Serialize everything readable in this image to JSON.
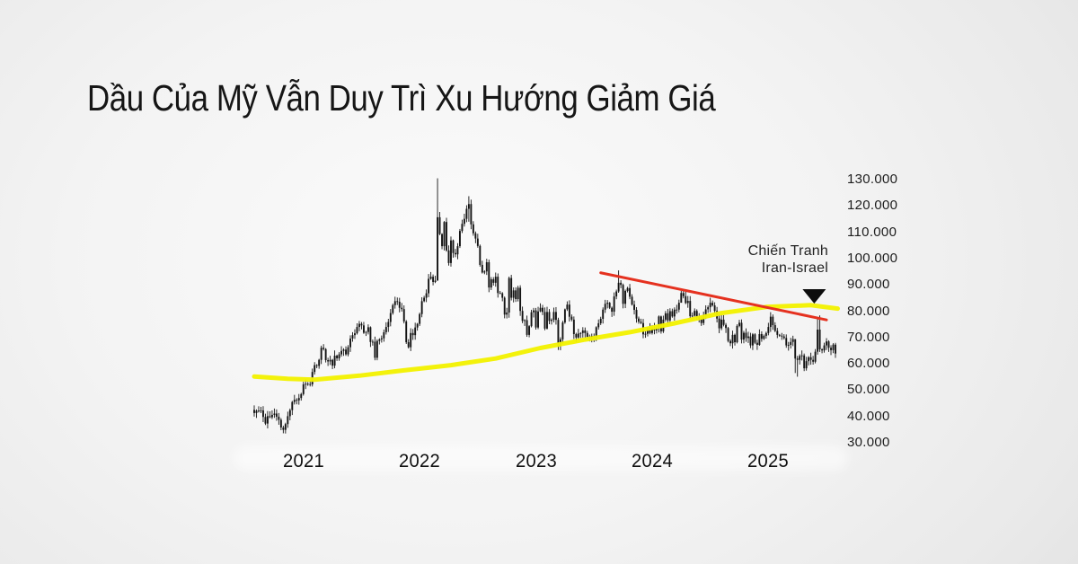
{
  "header": {
    "title": "Dầu Của Mỹ Vẫn Duy Trì Xu Hướng Giảm Giá"
  },
  "chart_data": {
    "type": "candlestick",
    "title": "Dầu Của Mỹ Vẫn Duy Trì Xu Hướng Giảm Giá",
    "candle_color": "#131313",
    "x_axis": {
      "ticks": [
        {
          "label": "2021",
          "week": 22
        },
        {
          "label": "2022",
          "week": 74
        },
        {
          "label": "2023",
          "week": 126
        },
        {
          "label": "2024",
          "week": 178
        },
        {
          "label": "2025",
          "week": 230
        }
      ]
    },
    "y_axis": {
      "visible_range": [
        28,
        133
      ],
      "ticks": [
        {
          "value": 130,
          "label": "130.000"
        },
        {
          "value": 120,
          "label": "120.000"
        },
        {
          "value": 110,
          "label": "110.000"
        },
        {
          "value": 100,
          "label": "100.000"
        },
        {
          "value": 90,
          "label": "90.000"
        },
        {
          "value": 80,
          "label": "80.000"
        },
        {
          "value": 70,
          "label": "70.000"
        },
        {
          "value": 60,
          "label": "60.000"
        },
        {
          "value": 50,
          "label": "50.000"
        },
        {
          "value": 40,
          "label": "40.000"
        },
        {
          "value": 30,
          "label": "30.000"
        }
      ]
    },
    "series": {
      "name": "WTI weekly candles",
      "first_open": 42.5,
      "weekly_closes": [
        41.3,
        42.2,
        42.0,
        42.3,
        39.8,
        37.3,
        40.1,
        39.7,
        40.6,
        41.1,
        39.9,
        38.7,
        35.8,
        34.9,
        37.1,
        40.1,
        42.4,
        45.5,
        46.3,
        46.1,
        47.0,
        48.5,
        52.2,
        52.4,
        52.3,
        52.2,
        56.9,
        59.5,
        59.2,
        61.5,
        66.1,
        65.6,
        61.4,
        60.9,
        61.5,
        59.3,
        63.1,
        62.1,
        63.6,
        64.9,
        65.4,
        63.6,
        66.3,
        69.6,
        70.9,
        71.6,
        74.0,
        75.2,
        74.6,
        71.8,
        72.1,
        73.9,
        68.3,
        68.4,
        62.3,
        68.7,
        69.3,
        69.7,
        72.0,
        74.0,
        75.9,
        79.3,
        82.3,
        83.8,
        83.6,
        81.3,
        80.8,
        76.1,
        68.2,
        66.3,
        71.7,
        70.9,
        73.8,
        75.2,
        78.9,
        83.8,
        85.1,
        86.8,
        92.3,
        93.1,
        91.1,
        91.6,
        115.7,
        109.3,
        104.7,
        113.9,
        103.1,
        98.3,
        106.9,
        102.1,
        101.6,
        104.7,
        110.5,
        113.2,
        115.1,
        118.9,
        120.7,
        113.0,
        109.6,
        107.6,
        104.8,
        97.6,
        94.7,
        95.1,
        98.6,
        89.0,
        92.1,
        90.8,
        93.1,
        86.9,
        86.8,
        85.1,
        78.7,
        79.5,
        92.6,
        85.1,
        87.9,
        84.6,
        88.9,
        80.1,
        76.3,
        76.6,
        71.0,
        74.3,
        79.6,
        80.3,
        73.8,
        79.9,
        81.3,
        79.7,
        73.4,
        79.7,
        76.3,
        76.7,
        79.7,
        76.7,
        66.7,
        69.3,
        75.7,
        80.7,
        82.5,
        77.9,
        76.8,
        71.3,
        70.0,
        71.5,
        71.7,
        72.7,
        71.7,
        70.2,
        69.2,
        70.6,
        69.9,
        73.9,
        75.4,
        77.1,
        80.6,
        82.8,
        83.2,
        81.3,
        79.8,
        85.6,
        87.5,
        90.8,
        90.0,
        82.8,
        87.7,
        88.8,
        85.5,
        82.5,
        80.5,
        77.2,
        76.0,
        75.5,
        71.2,
        71.4,
        73.6,
        71.7,
        73.8,
        72.7,
        73.3,
        78.0,
        72.3,
        76.8,
        79.2,
        76.5,
        80.0,
        78.0,
        80.6,
        80.6,
        83.2,
        86.9,
        85.7,
        83.1,
        83.9,
        78.1,
        78.3,
        80.1,
        77.7,
        77.0,
        75.5,
        78.5,
        80.7,
        81.5,
        83.2,
        82.2,
        80.1,
        77.2,
        73.5,
        76.8,
        74.8,
        73.6,
        68.7,
        67.8,
        71.0,
        68.2,
        74.4,
        75.6,
        69.2,
        71.8,
        69.8,
        70.4,
        67.0,
        71.2,
        68.0,
        67.2,
        71.3,
        69.5,
        70.6,
        71.7,
        74.0,
        77.9,
        74.7,
        72.5,
        71.0,
        70.7,
        70.4,
        69.8,
        67.0,
        67.2,
        68.3,
        69.4,
        62.0,
        61.5,
        63.0,
        63.2,
        58.3,
        61.0,
        62.5,
        61.5,
        60.8,
        64.6,
        73.0,
        65.5,
        65.1,
        67.0,
        68.5,
        66.1,
        65.2,
        67.3,
        63.9
      ],
      "wick_overrides": {
        "13": [
          36.5,
          33.6
        ],
        "82": [
          130.5,
          103.5
        ],
        "96": [
          123.7,
          114.0
        ],
        "163": [
          95.5,
          87.0
        ],
        "191": [
          87.7,
          83.5
        ],
        "242": [
          63.5,
          56.5
        ],
        "243": [
          63.0,
          55.1
        ],
        "252": [
          77.6,
          63.5
        ],
        "253": [
          78.4,
          64.5
        ]
      }
    },
    "moving_average": {
      "name": "yellow moving average",
      "color": "#f3f203",
      "points": [
        [
          0,
          55.2
        ],
        [
          15,
          54.3
        ],
        [
          27,
          54.0
        ],
        [
          47,
          55.5
        ],
        [
          67,
          57.5
        ],
        [
          88,
          59.5
        ],
        [
          108,
          62.0
        ],
        [
          128,
          66.0
        ],
        [
          148,
          69.2
        ],
        [
          168,
          72.0
        ],
        [
          188,
          75.4
        ],
        [
          209,
          79.3
        ],
        [
          229,
          81.6
        ],
        [
          249,
          82.3
        ],
        [
          261,
          81.0
        ]
      ]
    },
    "trendline": {
      "name": "red downtrend line",
      "color": "#e5311f",
      "from": {
        "week": 155,
        "price": 94.6
      },
      "to": {
        "week": 256,
        "price": 76.7
      }
    },
    "annotation": {
      "lines": [
        "Chiến Tranh",
        "Iran-Israel"
      ],
      "marker": "down-triangle",
      "marker_color": "#0c0c0c",
      "marker_week": 250.5,
      "marker_tip_price": 82.9
    }
  }
}
